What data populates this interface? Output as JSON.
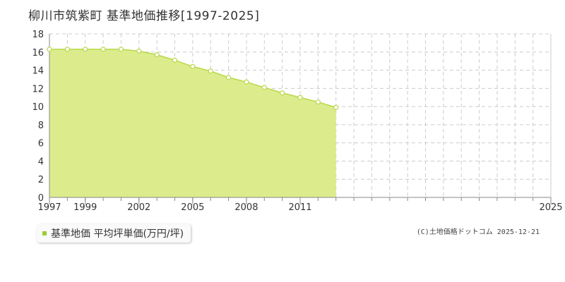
{
  "title": "柳川市筑紫町 基準地価推移[1997-2025]",
  "credit": "(C)土地価格ドットコム 2025-12-21",
  "colors": {
    "area_fill": "#dcec8c",
    "line": "#b8d84a",
    "grid": "#cccccc",
    "axis": "#888888",
    "point_stroke": "#b8d84a"
  },
  "chart_data": {
    "type": "area",
    "title": "柳川市筑紫町 基準地価推移[1997-2025]",
    "xlabel": "",
    "ylabel": "",
    "ylim": [
      0,
      18
    ],
    "xlim": [
      1997,
      2025
    ],
    "yticks": [
      "0",
      "2",
      "4",
      "6",
      "8",
      "10",
      "12",
      "14",
      "16",
      "18"
    ],
    "xticks": [
      "1997",
      "1999",
      "2002",
      "2005",
      "2008",
      "2011",
      "2025"
    ],
    "grid": true,
    "legend": "bottom-left",
    "series": [
      {
        "name": "基準地価 平均坪単価(万円/坪)",
        "x": [
          1997,
          1998,
          1999,
          2000,
          2001,
          2002,
          2003,
          2004,
          2005,
          2006,
          2007,
          2008,
          2009,
          2010,
          2011,
          2012,
          2013
        ],
        "values": [
          16.3,
          16.3,
          16.3,
          16.3,
          16.3,
          16.1,
          15.7,
          15.1,
          14.4,
          13.9,
          13.2,
          12.7,
          12.1,
          11.5,
          11.0,
          10.5,
          9.9
        ]
      }
    ]
  }
}
